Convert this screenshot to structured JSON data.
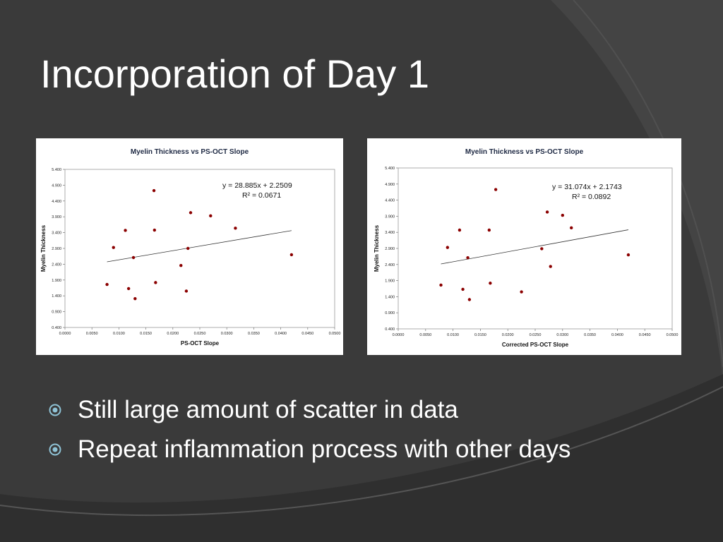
{
  "slide": {
    "title": "Incorporation of Day 1",
    "bullets": [
      {
        "text": "Still large amount of scatter in data",
        "icon": "target-bullet-icon"
      },
      {
        "text": "Repeat inflammation process with other days",
        "icon": "target-bullet-icon"
      }
    ],
    "colors": {
      "background": "#3b3b3b",
      "accent_arc": "#4a4a4a",
      "bullet_icon": "#8fc3d6",
      "title_text": "#ffffff"
    }
  },
  "chart_data": [
    {
      "type": "scatter",
      "title": "Myelin Thickness vs PS-OCT Slope",
      "xlabel": "PS-OCT Slope",
      "ylabel": "Myelin Thickness",
      "xlim": [
        0,
        0.05
      ],
      "ylim": [
        0.4,
        5.4
      ],
      "xticks": [
        "0.0000",
        "0.0050",
        "0.0100",
        "0.0150",
        "0.0200",
        "0.0250",
        "0.0300",
        "0.0350",
        "0.0400",
        "0.0450",
        "0.0500"
      ],
      "yticks": [
        "0.400",
        "0.900",
        "1.400",
        "1.900",
        "2.400",
        "2.900",
        "3.400",
        "3.900",
        "4.400",
        "4.900",
        "5.400"
      ],
      "points": [
        [
          0.0078,
          1.76
        ],
        [
          0.009,
          2.93
        ],
        [
          0.0112,
          3.47
        ],
        [
          0.0118,
          1.63
        ],
        [
          0.0127,
          2.61
        ],
        [
          0.013,
          1.31
        ],
        [
          0.0165,
          4.73
        ],
        [
          0.0166,
          3.48
        ],
        [
          0.0168,
          1.82
        ],
        [
          0.0215,
          2.36
        ],
        [
          0.0225,
          1.55
        ],
        [
          0.0228,
          2.9
        ],
        [
          0.0233,
          4.03
        ],
        [
          0.027,
          3.93
        ],
        [
          0.0316,
          3.54
        ],
        [
          0.042,
          2.7
        ]
      ],
      "trendline": {
        "slope": 28.885,
        "intercept": 2.2509,
        "x_range": [
          0.0078,
          0.042
        ]
      },
      "equation": "y = 28.885x + 2.2509",
      "r2": "R² = 0.0671",
      "marker_color": "#8b0000"
    },
    {
      "type": "scatter",
      "title": "Myelin Thickness vs PS-OCT Slope",
      "xlabel": "Corrected PS-OCT Slope",
      "ylabel": "Myelin Thickness",
      "xlim": [
        0,
        0.05
      ],
      "ylim": [
        0.4,
        5.4
      ],
      "xticks": [
        "0.0000",
        "0.0050",
        "0.0100",
        "0.0150",
        "0.0200",
        "0.0250",
        "0.0300",
        "0.0350",
        "0.0400",
        "0.0450",
        "0.0500"
      ],
      "yticks": [
        "0.400",
        "0.900",
        "1.400",
        "1.900",
        "2.400",
        "2.900",
        "3.400",
        "3.900",
        "4.400",
        "4.900",
        "5.400"
      ],
      "points": [
        [
          0.0078,
          1.76
        ],
        [
          0.009,
          2.93
        ],
        [
          0.0112,
          3.47
        ],
        [
          0.0118,
          1.63
        ],
        [
          0.0127,
          2.61
        ],
        [
          0.013,
          1.31
        ],
        [
          0.0166,
          3.47
        ],
        [
          0.0168,
          1.82
        ],
        [
          0.0178,
          4.73
        ],
        [
          0.0225,
          1.55
        ],
        [
          0.0262,
          2.89
        ],
        [
          0.0272,
          4.03
        ],
        [
          0.0278,
          2.34
        ],
        [
          0.03,
          3.93
        ],
        [
          0.0316,
          3.54
        ],
        [
          0.042,
          2.7
        ]
      ],
      "trendline": {
        "slope": 31.074,
        "intercept": 2.1743,
        "x_range": [
          0.0078,
          0.042
        ]
      },
      "equation": "y = 31.074x + 2.1743",
      "r2": "R² = 0.0892",
      "marker_color": "#8b0000"
    }
  ]
}
